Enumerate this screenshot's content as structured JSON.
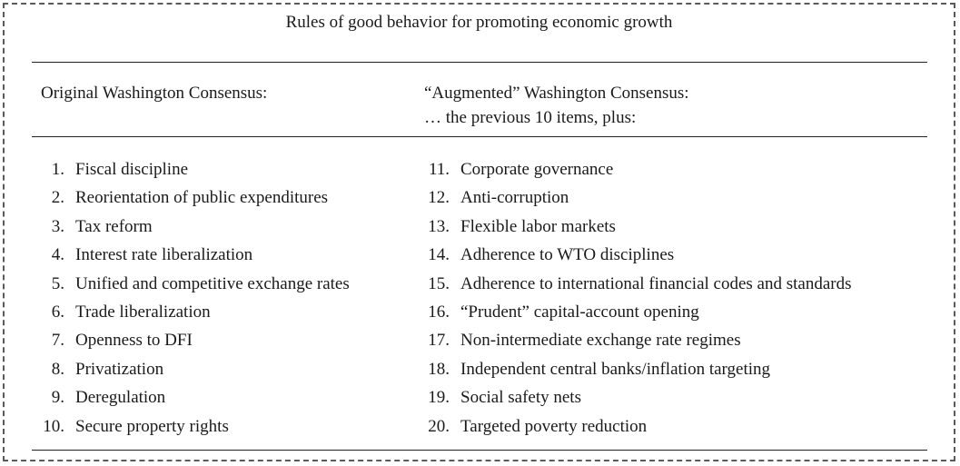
{
  "table": {
    "title": "Rules of good behavior for promoting economic growth",
    "left_header": "Original Washington Consensus:",
    "right_header": "“Augmented” Washington Consensus:",
    "right_subheader": "… the previous 10 items, plus:",
    "left_items": [
      {
        "num": "1.",
        "text": "Fiscal discipline"
      },
      {
        "num": "2.",
        "text": "Reorientation of public expenditures"
      },
      {
        "num": "3.",
        "text": "Tax reform"
      },
      {
        "num": "4.",
        "text": "Interest rate liberalization"
      },
      {
        "num": "5.",
        "text": "Unified and competitive exchange rates"
      },
      {
        "num": "6.",
        "text": "Trade liberalization"
      },
      {
        "num": "7.",
        "text": "Openness to DFI"
      },
      {
        "num": "8.",
        "text": "Privatization"
      },
      {
        "num": "9.",
        "text": "Deregulation"
      },
      {
        "num": "10.",
        "text": "Secure property rights"
      }
    ],
    "right_items": [
      {
        "num": "11.",
        "text": "Corporate governance"
      },
      {
        "num": "12.",
        "text": "Anti-corruption"
      },
      {
        "num": "13.",
        "text": "Flexible labor markets"
      },
      {
        "num": "14.",
        "text": "Adherence to WTO disciplines"
      },
      {
        "num": "15.",
        "text": "Adherence to international financial codes and standards"
      },
      {
        "num": "16.",
        "text": "“Prudent” capital-account opening"
      },
      {
        "num": "17.",
        "text": "Non-intermediate exchange rate regimes"
      },
      {
        "num": "18.",
        "text": "Independent central banks/inflation targeting"
      },
      {
        "num": "19.",
        "text": "Social safety nets"
      },
      {
        "num": "20.",
        "text": "Targeted poverty reduction"
      }
    ]
  }
}
